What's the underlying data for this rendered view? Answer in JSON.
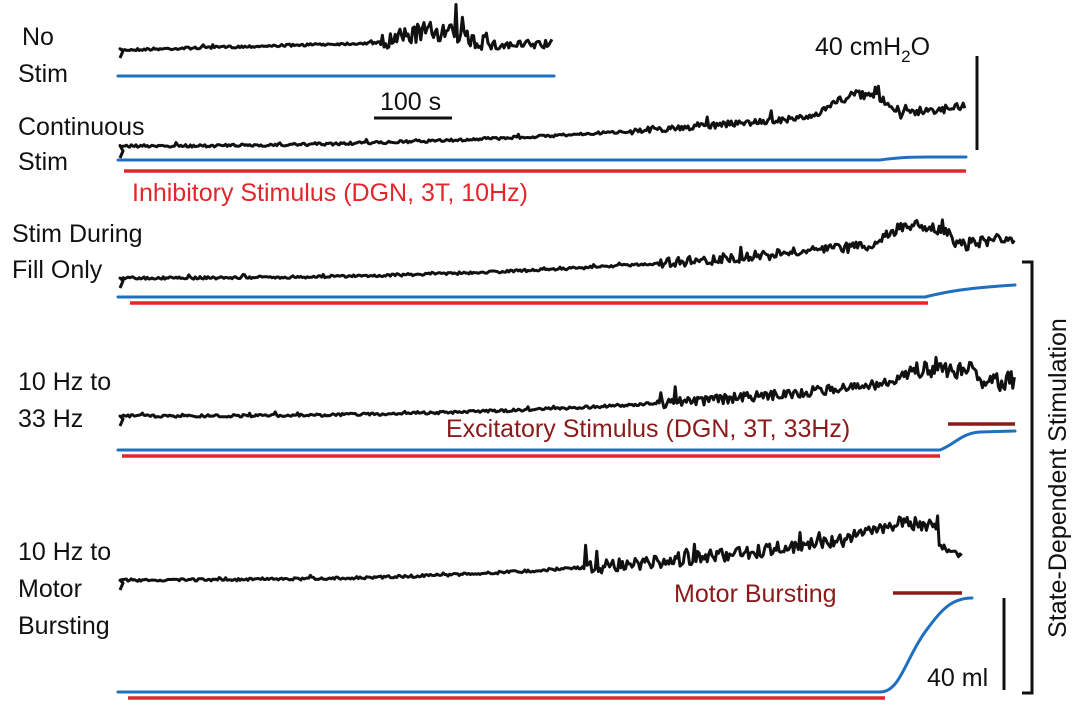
{
  "colors": {
    "pressure": "#111111",
    "volume": "#1f6fc0",
    "inhibitory": "#e3262b",
    "excitatory": "#8b1a1a",
    "text": "#111111"
  },
  "rows": [
    {
      "label_lines": [
        "No",
        "Stim"
      ]
    },
    {
      "label_lines": [
        "Continuous",
        "Stim"
      ]
    },
    {
      "label_lines": [
        "Stim During",
        "Fill Only"
      ]
    },
    {
      "label_lines": [
        "10 Hz to",
        "33 Hz"
      ]
    },
    {
      "label_lines": [
        "10 Hz to",
        "Motor",
        "Bursting"
      ]
    }
  ],
  "stimuli": {
    "inhibitory_label": "Inhibitory Stimulus (DGN, 3T, 10Hz)",
    "excitatory_label": "Excitatory Stimulus (DGN, 3T, 33Hz)",
    "motor_label": "Motor Bursting"
  },
  "scale_bars": {
    "time_label": "100 s",
    "pressure_value": "40 cmH",
    "pressure_sub": "2",
    "pressure_tail": "O",
    "volume_label": "40 ml"
  },
  "bracket_label": "State-Dependent Stimulation"
}
